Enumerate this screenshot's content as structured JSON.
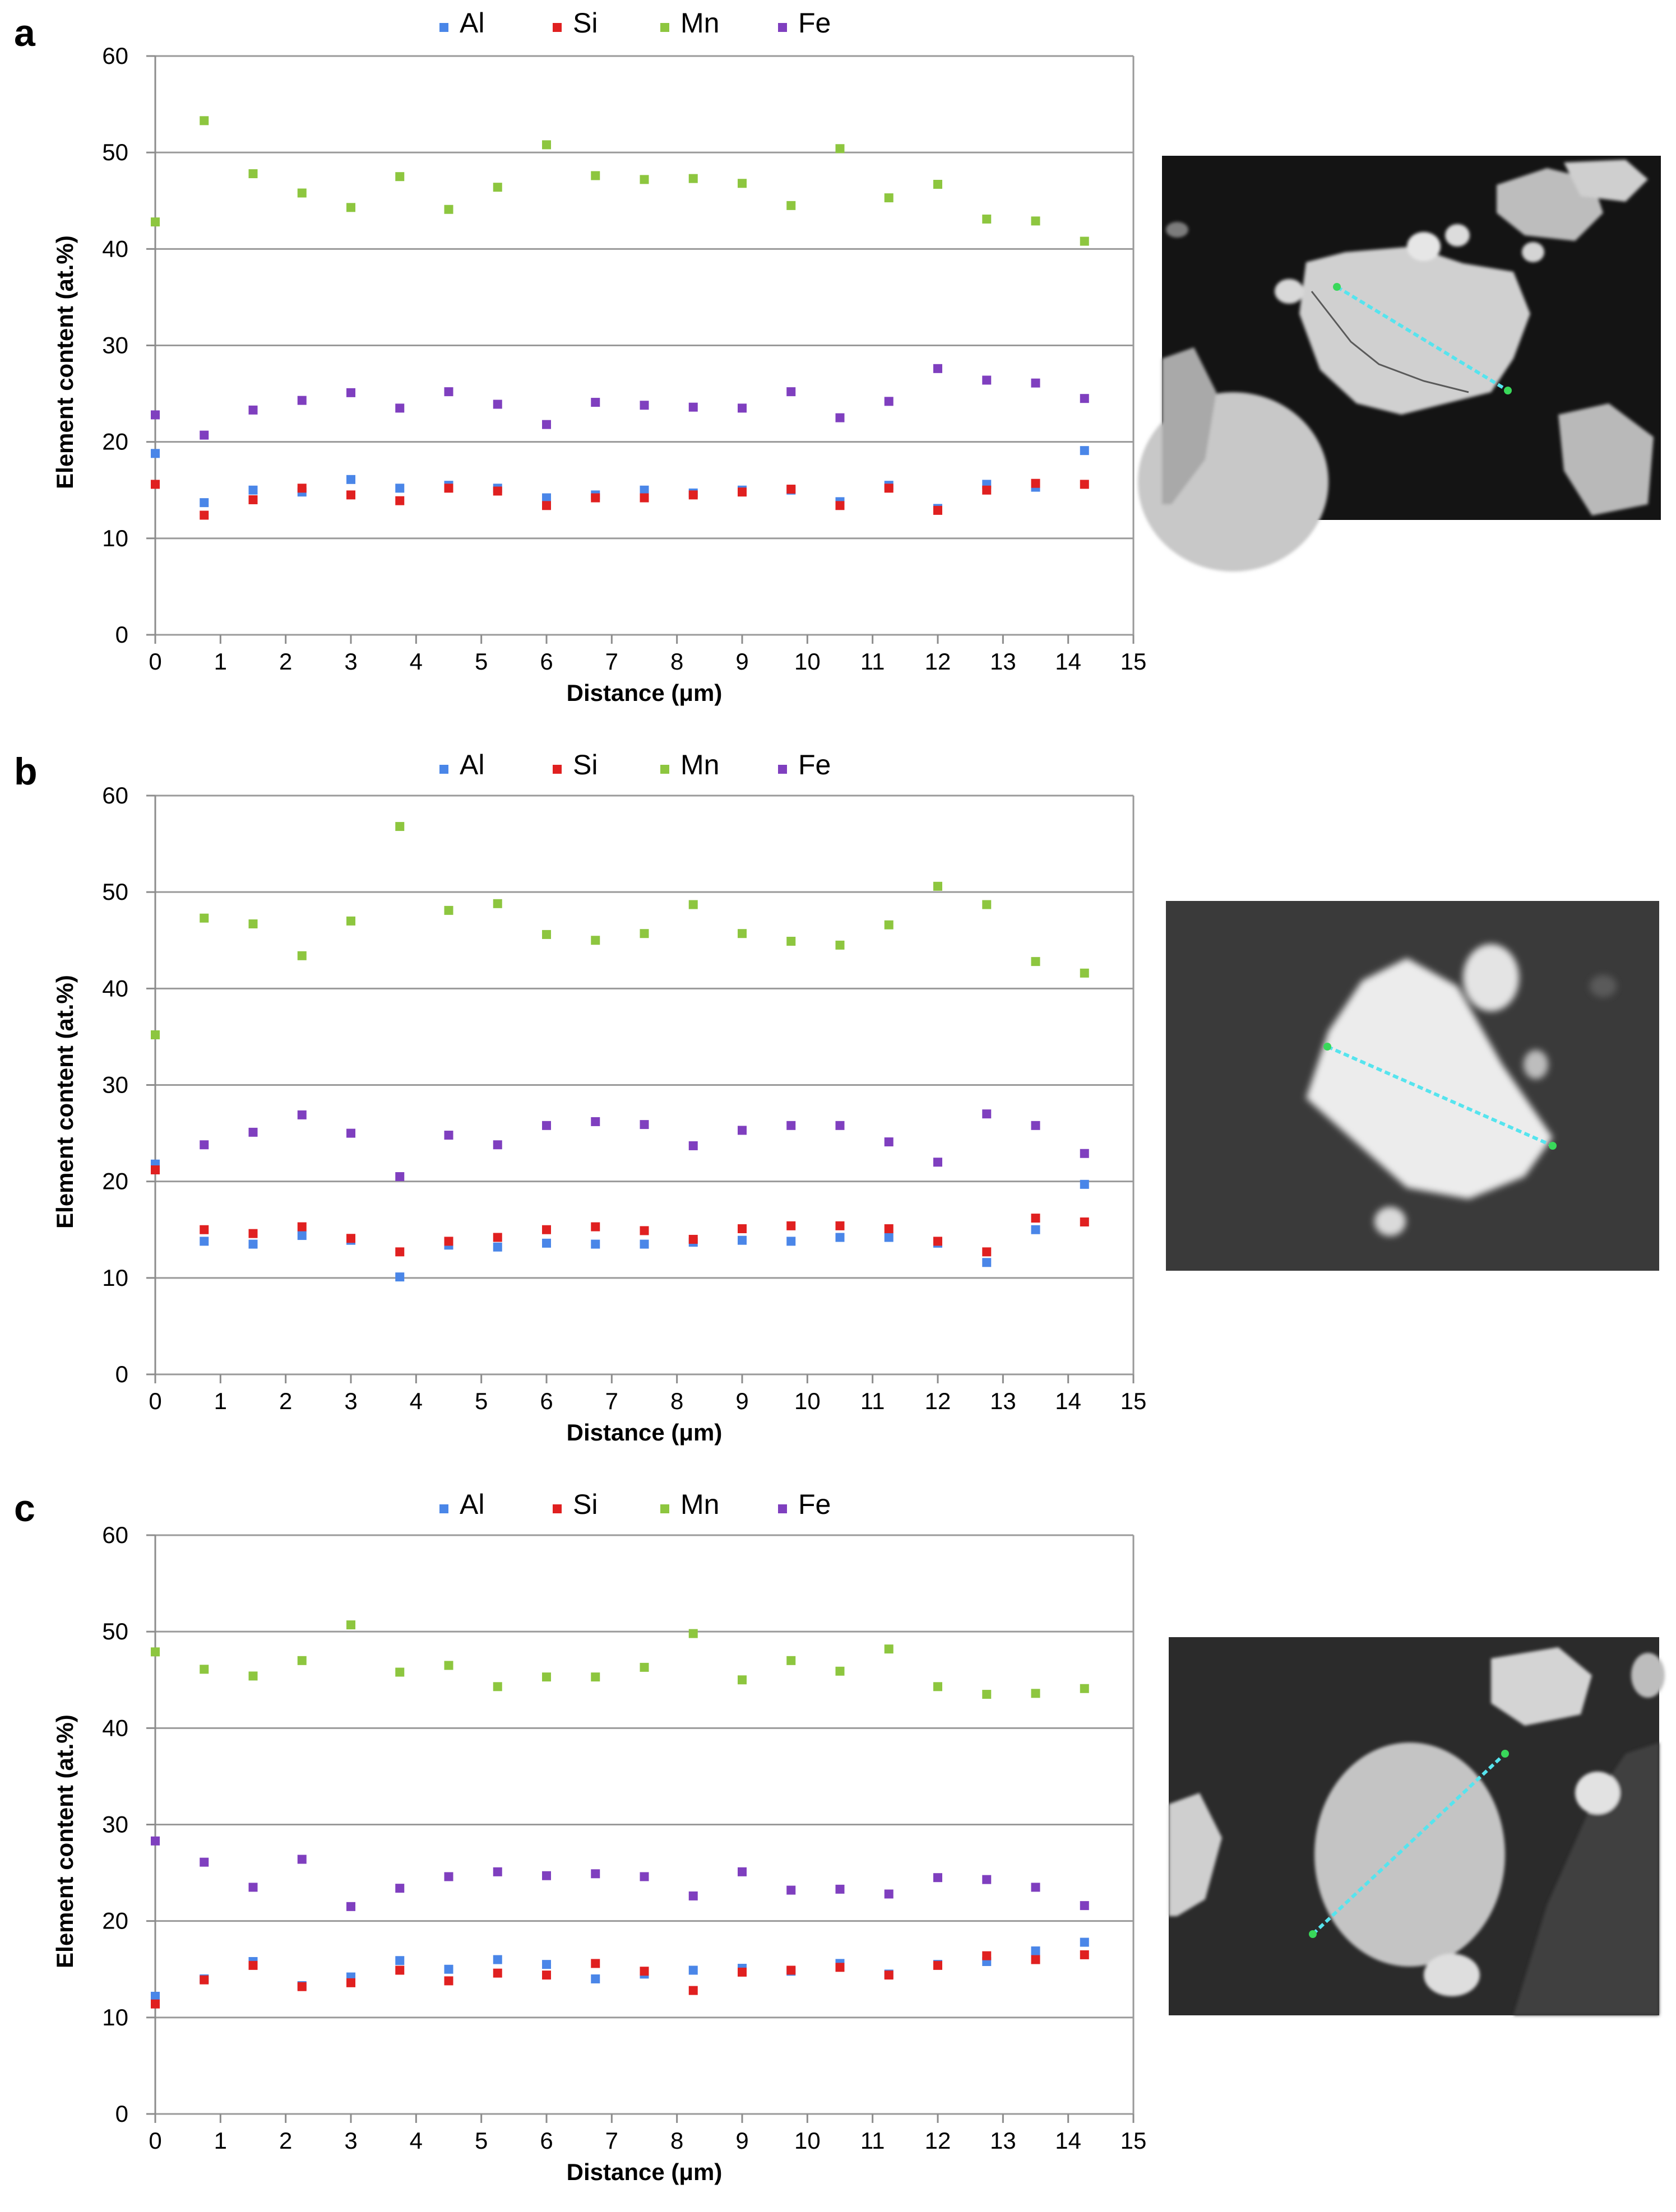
{
  "colors": {
    "Al": "#4a86e8",
    "Si": "#e02020",
    "Mn": "#8dc63f",
    "Fe": "#7f3fbf",
    "gridline": "#9a9a9a",
    "axis": "#8c8c8c"
  },
  "chart_data": [
    {
      "panel": "a",
      "type": "scatter",
      "xlabel": "Distance (μm)",
      "ylabel": "Element content (at.%)",
      "xlim": [
        0,
        15
      ],
      "ylim": [
        0,
        60
      ],
      "x_ticks": [
        "0",
        "1",
        "2",
        "3",
        "4",
        "5",
        "6",
        "7",
        "8",
        "9",
        "10",
        "11",
        "12",
        "13",
        "14",
        "15"
      ],
      "y_ticks": [
        "0",
        "10",
        "20",
        "30",
        "40",
        "50",
        "60"
      ],
      "grid": "horizontal",
      "legend": "top",
      "x": [
        0,
        0.75,
        1.5,
        2.25,
        3,
        3.75,
        4.5,
        5.25,
        6,
        6.75,
        7.5,
        8.25,
        9,
        9.75,
        10.5,
        11.25,
        12,
        12.75,
        13.5,
        14.25
      ],
      "series": [
        {
          "name": "Al",
          "values": [
            18.8,
            13.7,
            15.0,
            14.8,
            16.1,
            15.2,
            15.5,
            15.2,
            14.2,
            14.5,
            15.0,
            14.7,
            15.0,
            15.0,
            13.8,
            15.5,
            13.1,
            15.6,
            15.3,
            19.1
          ]
        },
        {
          "name": "Si",
          "values": [
            15.6,
            12.4,
            14.0,
            15.2,
            14.5,
            13.9,
            15.2,
            14.9,
            13.4,
            14.2,
            14.2,
            14.5,
            14.8,
            15.1,
            13.4,
            15.2,
            12.9,
            15.0,
            15.7,
            15.6
          ]
        },
        {
          "name": "Mn",
          "values": [
            42.8,
            53.3,
            47.8,
            45.8,
            44.3,
            47.5,
            44.1,
            46.4,
            50.8,
            47.6,
            47.2,
            47.3,
            46.8,
            44.5,
            50.4,
            45.3,
            46.7,
            43.1,
            42.9,
            40.8
          ]
        },
        {
          "name": "Fe",
          "values": [
            22.8,
            20.7,
            23.3,
            24.3,
            25.1,
            23.5,
            25.2,
            23.9,
            21.8,
            24.1,
            23.8,
            23.6,
            23.5,
            25.2,
            22.5,
            24.2,
            27.6,
            26.4,
            26.1,
            24.5
          ]
        }
      ]
    },
    {
      "panel": "b",
      "type": "scatter",
      "xlabel": "Distance (μm)",
      "ylabel": "Element content (at.%)",
      "xlim": [
        0,
        15
      ],
      "ylim": [
        0,
        60
      ],
      "x_ticks": [
        "0",
        "1",
        "2",
        "3",
        "4",
        "5",
        "6",
        "7",
        "8",
        "9",
        "10",
        "11",
        "12",
        "13",
        "14",
        "15"
      ],
      "y_ticks": [
        "0",
        "10",
        "20",
        "30",
        "40",
        "50",
        "60"
      ],
      "grid": "horizontal",
      "legend": "top",
      "x": [
        0,
        0.75,
        1.5,
        2.25,
        3,
        3.75,
        4.5,
        5.25,
        6,
        6.75,
        7.5,
        8.25,
        9,
        9.75,
        10.5,
        11.25,
        12,
        12.75,
        13.5,
        14.25
      ],
      "series": [
        {
          "name": "Al",
          "values": [
            21.8,
            13.8,
            13.5,
            14.4,
            13.9,
            10.1,
            13.4,
            13.2,
            13.6,
            13.5,
            13.5,
            13.7,
            13.9,
            13.8,
            14.2,
            14.2,
            13.6,
            11.6,
            15.0,
            19.7
          ]
        },
        {
          "name": "Si",
          "values": [
            21.2,
            15.0,
            14.6,
            15.3,
            14.1,
            12.7,
            13.8,
            14.2,
            15.0,
            15.3,
            14.9,
            14.0,
            15.1,
            15.4,
            15.4,
            15.1,
            13.8,
            12.7,
            16.2,
            15.8
          ]
        },
        {
          "name": "Mn",
          "values": [
            35.2,
            47.3,
            46.7,
            43.4,
            47.0,
            56.8,
            48.1,
            48.8,
            45.6,
            45.0,
            45.7,
            48.7,
            45.7,
            44.9,
            44.5,
            46.6,
            50.6,
            48.7,
            42.8,
            41.6
          ]
        },
        {
          "name": "Fe",
          "values": [
            21.6,
            23.8,
            25.1,
            26.9,
            25.0,
            20.5,
            24.8,
            23.8,
            25.8,
            26.2,
            25.9,
            23.7,
            25.3,
            25.8,
            25.8,
            24.1,
            22.0,
            27.0,
            25.8,
            22.9
          ]
        }
      ]
    },
    {
      "panel": "c",
      "type": "scatter",
      "xlabel": "Distance (μm)",
      "ylabel": "Element content (at.%)",
      "xlim": [
        0,
        15
      ],
      "ylim": [
        0,
        60
      ],
      "x_ticks": [
        "0",
        "1",
        "2",
        "3",
        "4",
        "5",
        "6",
        "7",
        "8",
        "9",
        "10",
        "11",
        "12",
        "13",
        "14",
        "15"
      ],
      "y_ticks": [
        "0",
        "10",
        "20",
        "30",
        "40",
        "50",
        "60"
      ],
      "grid": "horizontal",
      "legend": "top",
      "x": [
        0,
        0.75,
        1.5,
        2.25,
        3,
        3.75,
        4.5,
        5.25,
        6,
        6.75,
        7.5,
        8.25,
        9,
        9.75,
        10.5,
        11.25,
        12,
        12.75,
        13.5,
        14.25
      ],
      "series": [
        {
          "name": "Al",
          "values": [
            12.2,
            14.0,
            15.8,
            13.3,
            14.2,
            15.9,
            15.0,
            16.0,
            15.5,
            14.0,
            14.5,
            14.9,
            15.1,
            14.8,
            15.6,
            14.5,
            15.5,
            15.8,
            16.9,
            17.8
          ]
        },
        {
          "name": "Si",
          "values": [
            11.4,
            13.9,
            15.4,
            13.2,
            13.6,
            14.9,
            13.8,
            14.6,
            14.4,
            15.6,
            14.8,
            12.8,
            14.7,
            14.9,
            15.2,
            14.4,
            15.4,
            16.4,
            16.0,
            16.5
          ]
        },
        {
          "name": "Mn",
          "values": [
            47.9,
            46.1,
            45.4,
            47.0,
            50.7,
            45.8,
            46.5,
            44.3,
            45.3,
            45.3,
            46.3,
            49.8,
            45.0,
            47.0,
            45.9,
            48.2,
            44.3,
            43.5,
            43.6,
            44.1
          ]
        },
        {
          "name": "Fe",
          "values": [
            28.3,
            26.1,
            23.5,
            26.4,
            21.5,
            23.4,
            24.6,
            25.1,
            24.7,
            24.9,
            24.6,
            22.6,
            25.1,
            23.2,
            23.3,
            22.8,
            24.5,
            24.3,
            23.5,
            21.6
          ]
        }
      ]
    }
  ]
}
